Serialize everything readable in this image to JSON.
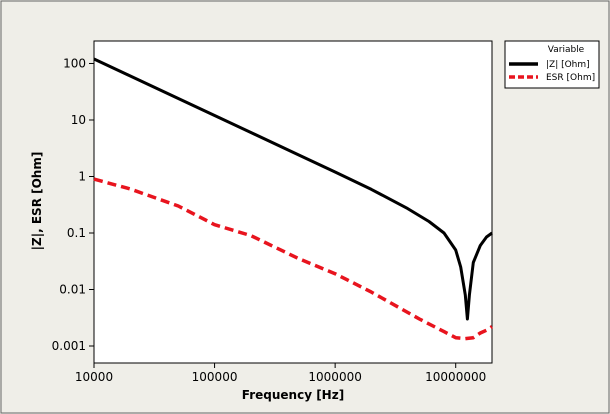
{
  "chart_data": {
    "type": "line",
    "xlabel": "Frequency [Hz]",
    "ylabel": "|Z|, ESR [Ohm]",
    "xscale": "log",
    "yscale": "log",
    "xlim": [
      10000,
      20000000
    ],
    "ylim": [
      0.0005,
      250
    ],
    "x_ticks": [
      10000,
      100000,
      1000000,
      10000000
    ],
    "x_tick_labels": [
      "10000",
      "100000",
      "1000000",
      "10000000"
    ],
    "y_ticks": [
      100,
      10,
      1,
      0.1,
      0.01,
      0.001
    ],
    "y_tick_labels": [
      "100",
      "10",
      "1",
      "0.1",
      "0.01",
      "0.001"
    ],
    "grid": false,
    "legend": {
      "title": "Variable",
      "placement": "right",
      "entries": [
        "|Z| [Ohm]",
        "ESR [Ohm]"
      ]
    },
    "series": [
      {
        "name": "|Z| [Ohm]",
        "color": "#000000",
        "style": "solid",
        "x": [
          10000,
          20000,
          50000,
          100000,
          200000,
          500000,
          1000000,
          2000000,
          4000000,
          6000000,
          8000000,
          10000000,
          11000000,
          12000000,
          12500000,
          13000000,
          14000000,
          16000000,
          18000000,
          20000000
        ],
        "y": [
          120,
          60,
          24,
          12,
          6,
          2.4,
          1.2,
          0.59,
          0.27,
          0.16,
          0.1,
          0.05,
          0.025,
          0.008,
          0.003,
          0.008,
          0.03,
          0.06,
          0.085,
          0.1
        ]
      },
      {
        "name": "ESR [Ohm]",
        "color": "#e8141e",
        "style": "dashed",
        "x": [
          10000,
          20000,
          50000,
          100000,
          200000,
          500000,
          1000000,
          2000000,
          5000000,
          8000000,
          10000000,
          12000000,
          14000000,
          16000000,
          18000000,
          20000000
        ],
        "y": [
          0.9,
          0.6,
          0.3,
          0.14,
          0.09,
          0.035,
          0.019,
          0.009,
          0.003,
          0.0018,
          0.0014,
          0.00135,
          0.0014,
          0.0017,
          0.0019,
          0.0022
        ]
      }
    ]
  }
}
